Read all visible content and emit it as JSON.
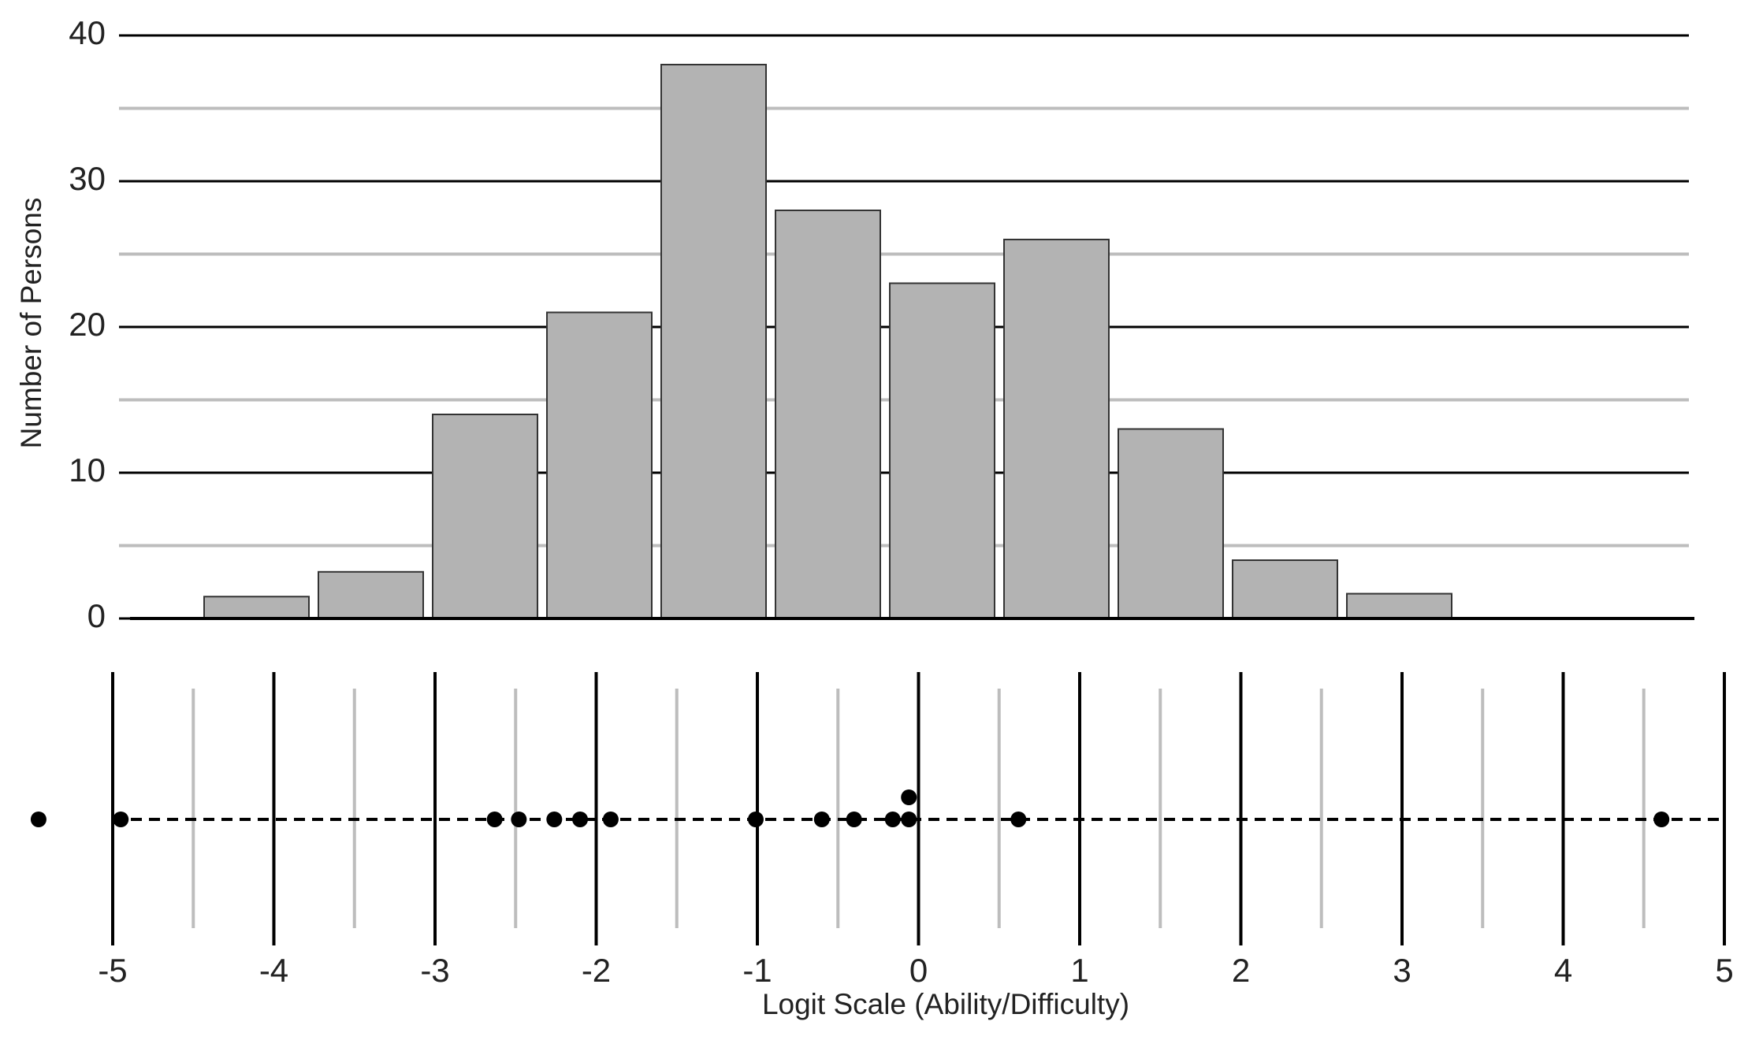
{
  "chart_data": [
    {
      "type": "bar",
      "y_label": "Number of Persons",
      "categories": [
        null,
        null,
        null,
        null,
        null,
        null,
        null,
        null,
        null,
        null,
        null
      ],
      "values": [
        1.5,
        3.2,
        14,
        21,
        38,
        28,
        23,
        26,
        13,
        4,
        1.7
      ],
      "color": "#b3b3b3",
      "ylim": [
        0,
        40
      ],
      "yticks": [
        0,
        10,
        20,
        30,
        40
      ],
      "yticks_minor": [
        5,
        15,
        25,
        35
      ],
      "grid": true
    },
    {
      "type": "scatter",
      "x_label": "Logit Scale (Ability/Difficulty)",
      "x": [
        -5.46,
        -4.95,
        -2.63,
        -2.48,
        -2.26,
        -2.1,
        -1.91,
        -1.01,
        -0.6,
        -0.4,
        -0.16,
        -0.06,
        -0.06,
        0.62,
        4.61
      ],
      "y": [
        0,
        0,
        0,
        0,
        0,
        0,
        0,
        0,
        0,
        0,
        0,
        1,
        0,
        0,
        0
      ],
      "color": "#000000",
      "xlim": [
        -5.55,
        5
      ],
      "xticks": [
        -5,
        -4,
        -3,
        -2,
        -1,
        0,
        1,
        2,
        3,
        4,
        5
      ],
      "xticks_minor": [
        -4.5,
        -3.5,
        -2.5,
        -1.5,
        -0.5,
        0.5,
        1.5,
        2.5,
        3.5,
        4.5
      ],
      "grid": true
    }
  ]
}
